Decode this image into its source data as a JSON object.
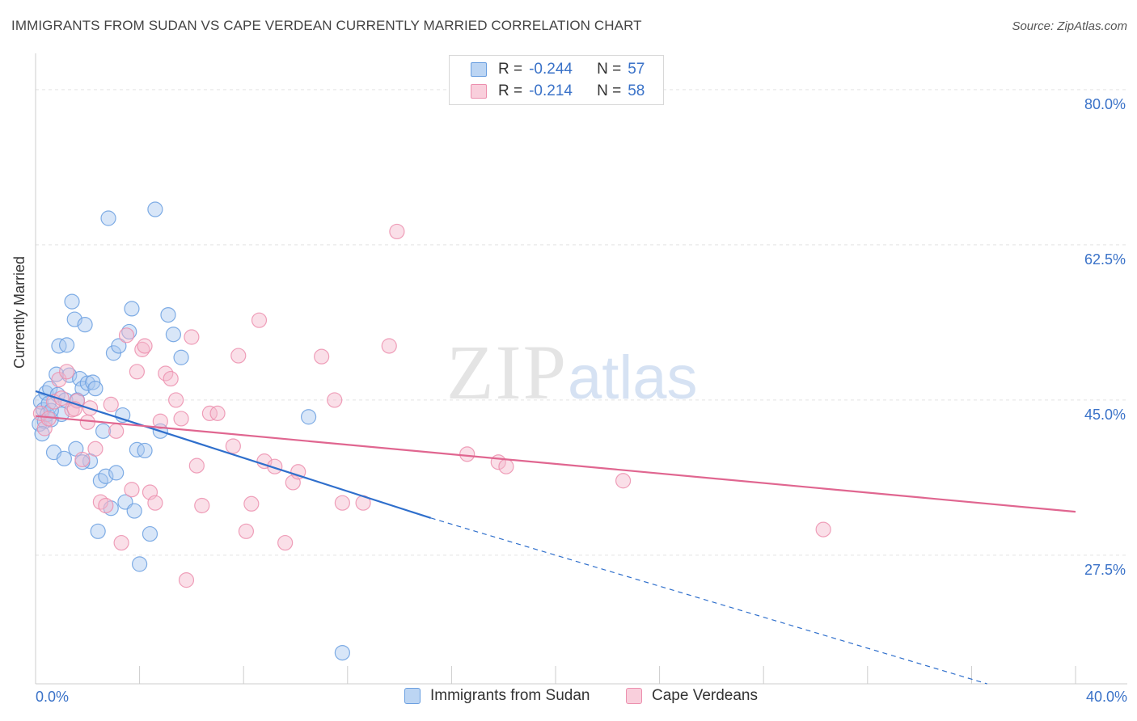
{
  "title": "IMMIGRANTS FROM SUDAN VS CAPE VERDEAN CURRENTLY MARRIED CORRELATION CHART",
  "source": "Source: ZipAtlas.com",
  "watermark": {
    "zip": "ZIP",
    "atlas": "atlas"
  },
  "legend_top": [
    {
      "r_label": "R =",
      "r_value": "-0.244",
      "n_label": "N =",
      "n_value": "57"
    },
    {
      "r_label": "R =",
      "r_value": "-0.214",
      "n_label": "N =",
      "n_value": "58"
    }
  ],
  "colors": {
    "blue_fill": "#a8c8ef",
    "blue_stroke": "#6a9fe0",
    "blue_line": "#2f6fcc",
    "pink_fill": "#f5b8cc",
    "pink_stroke": "#ec8fae",
    "pink_line": "#e06690",
    "grid": "#e3e3e3",
    "axis_text": "#3a72c8"
  },
  "chart_data": {
    "type": "scatter",
    "title": "IMMIGRANTS FROM SUDAN VS CAPE VERDEAN CURRENTLY MARRIED CORRELATION CHART",
    "xlabel": "",
    "ylabel": "Currently Married",
    "xlim": [
      0,
      40
    ],
    "ylim": [
      13,
      83
    ],
    "x_tick_labels": [
      "0.0%",
      "40.0%"
    ],
    "y_ticks": [
      27.5,
      45.0,
      62.5,
      80.0
    ],
    "y_tick_labels": [
      "27.5%",
      "45.0%",
      "62.5%",
      "80.0%"
    ],
    "grid": true,
    "legend_placement": "top-center and bottom",
    "series": [
      {
        "name": "Immigrants from Sudan",
        "color": "#6a9fe0",
        "r": "-0.244",
        "n": "57",
        "trend": {
          "x": [
            0,
            15.2
          ],
          "y": [
            46.0,
            31.7
          ],
          "dashed_to": [
            36.6,
            13.0
          ]
        },
        "points": [
          [
            0.15,
            42.3
          ],
          [
            0.2,
            44.8
          ],
          [
            0.3,
            43.9
          ],
          [
            0.35,
            42.6
          ],
          [
            0.4,
            45.8
          ],
          [
            0.45,
            43.4
          ],
          [
            0.5,
            44.6
          ],
          [
            0.55,
            46.3
          ],
          [
            0.6,
            42.8
          ],
          [
            0.7,
            39.1
          ],
          [
            0.8,
            47.9
          ],
          [
            0.85,
            45.6
          ],
          [
            0.9,
            51.1
          ],
          [
            1.0,
            43.4
          ],
          [
            1.1,
            38.4
          ],
          [
            1.15,
            45.0
          ],
          [
            1.2,
            51.2
          ],
          [
            1.3,
            47.8
          ],
          [
            1.4,
            56.1
          ],
          [
            1.5,
            54.1
          ],
          [
            1.55,
            39.5
          ],
          [
            1.6,
            45.0
          ],
          [
            1.7,
            47.4
          ],
          [
            1.8,
            46.3
          ],
          [
            1.9,
            53.5
          ],
          [
            2.0,
            46.9
          ],
          [
            2.1,
            38.1
          ],
          [
            2.2,
            47.0
          ],
          [
            2.3,
            46.3
          ],
          [
            2.4,
            30.2
          ],
          [
            2.5,
            35.9
          ],
          [
            2.6,
            41.5
          ],
          [
            2.7,
            36.4
          ],
          [
            2.8,
            65.5
          ],
          [
            2.9,
            32.8
          ],
          [
            3.0,
            50.3
          ],
          [
            3.1,
            36.8
          ],
          [
            3.2,
            51.1
          ],
          [
            3.35,
            43.3
          ],
          [
            3.45,
            33.5
          ],
          [
            3.6,
            52.7
          ],
          [
            3.7,
            55.3
          ],
          [
            3.8,
            32.5
          ],
          [
            3.9,
            39.4
          ],
          [
            4.0,
            26.5
          ],
          [
            4.2,
            39.3
          ],
          [
            4.4,
            29.9
          ],
          [
            4.6,
            66.5
          ],
          [
            4.8,
            41.5
          ],
          [
            5.1,
            54.6
          ],
          [
            5.3,
            52.4
          ],
          [
            5.6,
            49.8
          ],
          [
            10.5,
            43.1
          ],
          [
            11.8,
            16.5
          ],
          [
            0.25,
            41.2
          ],
          [
            0.6,
            43.8
          ],
          [
            1.8,
            38.0
          ]
        ]
      },
      {
        "name": "Cape Verdeans",
        "color": "#ec8fae",
        "r": "-0.214",
        "n": "58",
        "trend": {
          "x": [
            0,
            40
          ],
          "y": [
            43.2,
            32.4
          ]
        },
        "points": [
          [
            0.2,
            43.5
          ],
          [
            0.35,
            41.8
          ],
          [
            0.5,
            42.9
          ],
          [
            0.7,
            44.8
          ],
          [
            0.9,
            47.3
          ],
          [
            1.0,
            45.2
          ],
          [
            1.2,
            48.2
          ],
          [
            1.4,
            43.9
          ],
          [
            1.6,
            44.9
          ],
          [
            1.8,
            38.3
          ],
          [
            2.0,
            42.5
          ],
          [
            2.1,
            44.1
          ],
          [
            2.3,
            39.5
          ],
          [
            2.5,
            33.5
          ],
          [
            2.7,
            33.1
          ],
          [
            2.9,
            44.5
          ],
          [
            3.1,
            41.5
          ],
          [
            3.3,
            28.9
          ],
          [
            3.5,
            52.3
          ],
          [
            3.7,
            34.9
          ],
          [
            3.9,
            48.2
          ],
          [
            4.1,
            50.7
          ],
          [
            4.2,
            51.1
          ],
          [
            4.4,
            34.6
          ],
          [
            4.6,
            33.4
          ],
          [
            4.8,
            42.6
          ],
          [
            5.0,
            48.0
          ],
          [
            5.2,
            47.4
          ],
          [
            5.4,
            45.0
          ],
          [
            5.6,
            42.9
          ],
          [
            5.8,
            24.7
          ],
          [
            6.0,
            52.1
          ],
          [
            6.2,
            37.6
          ],
          [
            6.4,
            33.1
          ],
          [
            6.7,
            43.5
          ],
          [
            7.0,
            43.5
          ],
          [
            7.6,
            39.8
          ],
          [
            7.8,
            50.0
          ],
          [
            8.1,
            30.2
          ],
          [
            8.3,
            33.3
          ],
          [
            8.6,
            54.0
          ],
          [
            8.8,
            38.1
          ],
          [
            9.2,
            37.5
          ],
          [
            9.6,
            28.9
          ],
          [
            9.9,
            35.7
          ],
          [
            10.1,
            36.9
          ],
          [
            11.0,
            49.9
          ],
          [
            11.5,
            45.0
          ],
          [
            11.8,
            33.4
          ],
          [
            12.6,
            33.4
          ],
          [
            13.6,
            51.1
          ],
          [
            13.9,
            64.0
          ],
          [
            16.6,
            38.9
          ],
          [
            17.8,
            38.0
          ],
          [
            18.1,
            37.5
          ],
          [
            22.6,
            35.9
          ],
          [
            30.3,
            30.4
          ],
          [
            1.5,
            44.0
          ]
        ]
      }
    ]
  }
}
